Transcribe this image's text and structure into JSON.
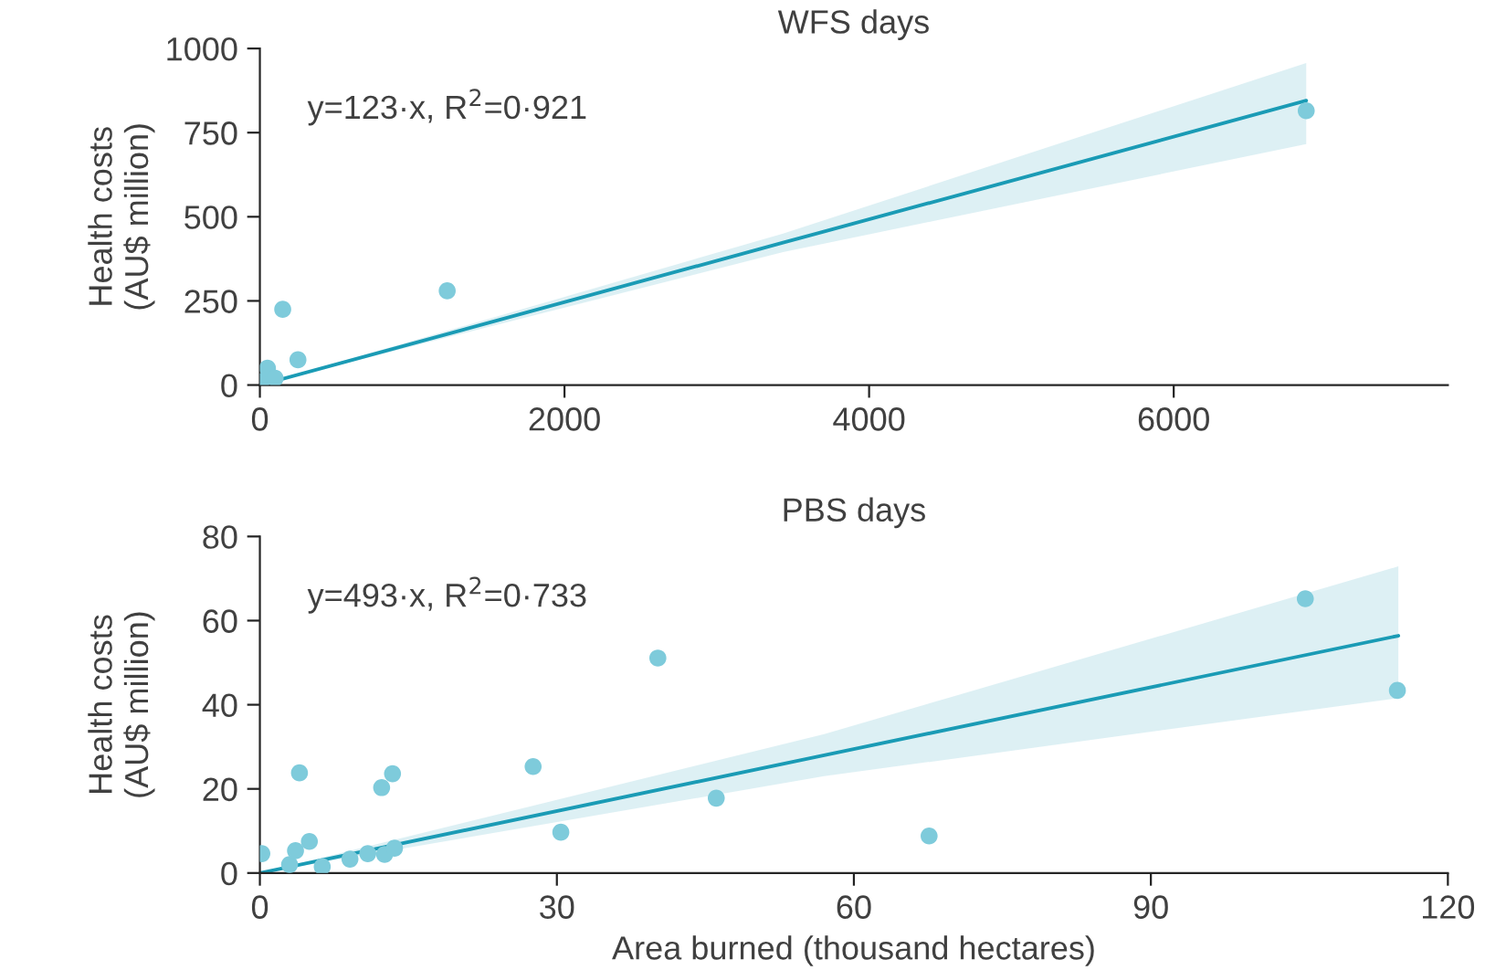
{
  "chart_data": [
    {
      "type": "scatter",
      "title": "WFS days",
      "ylabel": "Health costs\n(AU$ million)",
      "annotations": [
        "y=123·x, R$^{2}$=0·921"
      ],
      "xlim": [
        0,
        7800
      ],
      "xticks": [
        0,
        2000,
        4000,
        6000
      ],
      "ylim": [
        0,
        1000
      ],
      "yticks": [
        0,
        250,
        500,
        750,
        1000
      ],
      "grid": false,
      "legend": false,
      "series": [
        {
          "marker": "circle",
          "color": "#7ecbdb",
          "x": [
            10,
            50,
            100,
            150,
            250,
            1230,
            6870
          ],
          "values": [
            10,
            50,
            20,
            225,
            75,
            280,
            815
          ]
        },
        {
          "type": "line",
          "color": "#1a9bb5",
          "x": [
            0,
            3435,
            6870
          ],
          "values": [
            0,
            423,
            845
          ],
          "lower": [
            0,
            395,
            716
          ],
          "upper": [
            0,
            450,
            957
          ]
        }
      ]
    },
    {
      "type": "scatter",
      "title": "PBS days",
      "ylabel": "Health costs\n(AU$ million)",
      "xlabel": "Area burned (thousand hectares)",
      "annotations": [
        "y=493·x, R$^{2}$=0·733"
      ],
      "xlim": [
        0,
        120
      ],
      "xticks": [
        0,
        30,
        60,
        90,
        120
      ],
      "ylim": [
        0,
        80
      ],
      "yticks": [
        0,
        20,
        40,
        60,
        80
      ],
      "grid": false,
      "legend": false,
      "series": [
        {
          "marker": "circle",
          "color": "#7ecbdb",
          "x": [
            0.2,
            3,
            3.5,
            3.6,
            4,
            5,
            6.3,
            9.1,
            10.9,
            12.3,
            12.6,
            13.4,
            13.6,
            27.6,
            30.4,
            40.2,
            46.1,
            67.6,
            105.6,
            114.9
          ],
          "values": [
            4.6,
            2,
            null,
            5.3,
            23.8,
            7.5,
            1.5,
            3.3,
            4.6,
            20.3,
            4.4,
            23.6,
            5.9,
            25.3,
            9.7,
            51.1,
            17.8,
            8.8,
            65.2,
            43.4
          ]
        },
        {
          "type": "line",
          "color": "#1a9bb5",
          "x": [
            0,
            57,
            115
          ],
          "values": [
            0,
            28,
            56.4
          ],
          "lower": [
            0,
            23,
            41.6
          ],
          "upper": [
            0,
            33,
            72.9
          ]
        }
      ]
    }
  ]
}
